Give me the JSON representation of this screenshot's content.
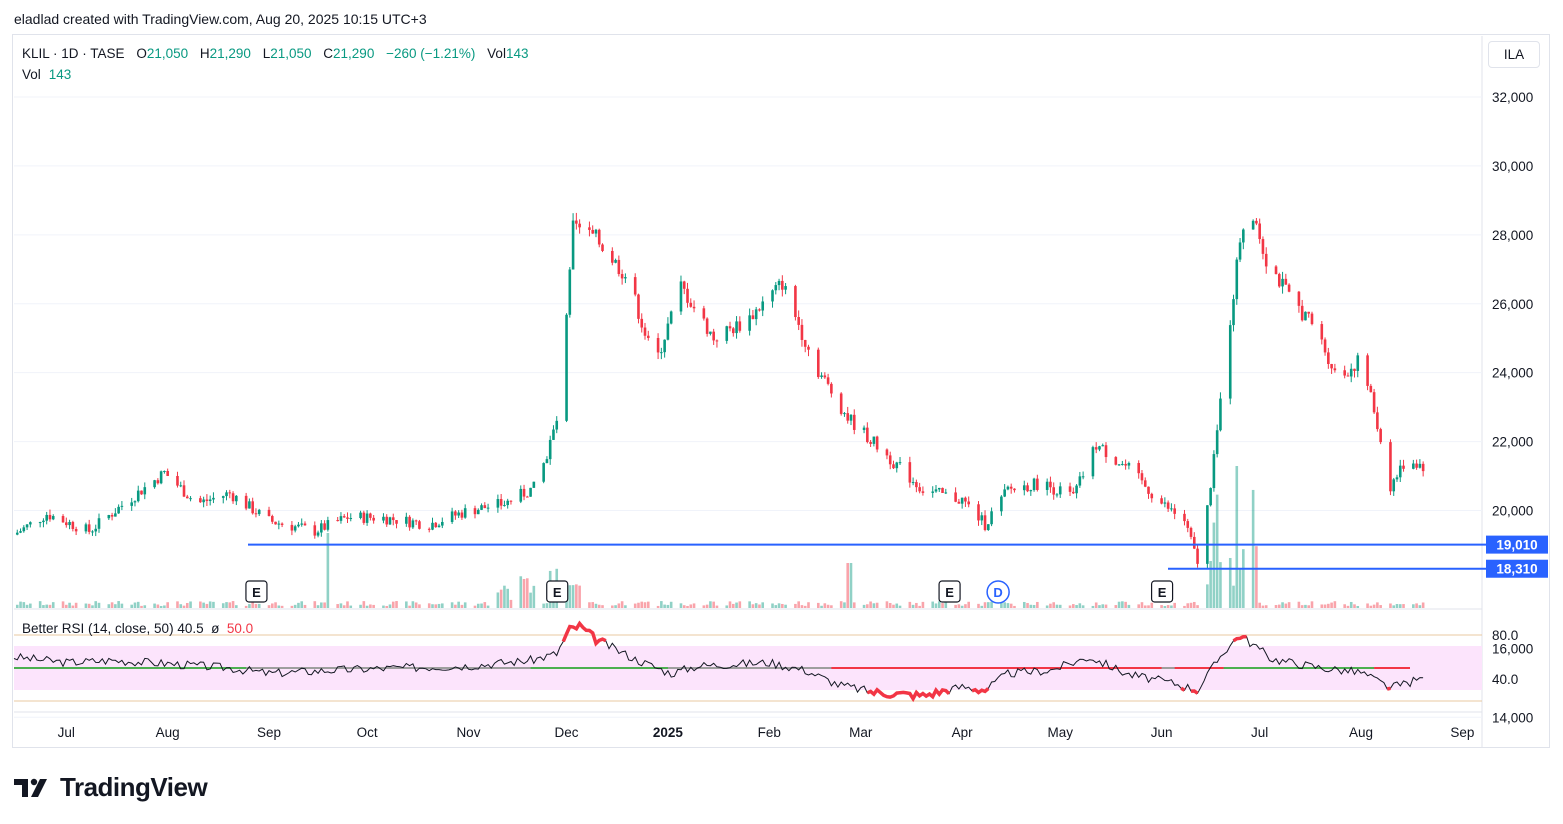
{
  "header": {
    "text": "eladlad created with TradingView.com, Aug 20, 2025 10:15 UTC+3"
  },
  "legend": {
    "symbol": "KLIL · 1D · TASE",
    "open_label": "O",
    "open": "21,050",
    "high_label": "H",
    "high": "21,290",
    "low_label": "L",
    "low": "21,050",
    "close_label": "C",
    "close": "21,290",
    "change": "−260 (−1.21%)",
    "vol_label": "Vol",
    "vol": "143"
  },
  "volume_legend": {
    "label": "Vol",
    "value": "143"
  },
  "rsi_legend": {
    "label": "Better RSI (14, close, 50)",
    "value": "40.5",
    "sep": "ø",
    "mid": "50.0"
  },
  "currency": "ILA",
  "brand": {
    "name": "TradingView"
  },
  "colors": {
    "up": "#089981",
    "down": "#f23645",
    "line": "#2962ff",
    "rsi_band": "#fce4fc"
  },
  "chart_data": [
    {
      "type": "candlestick",
      "symbol": "KLIL",
      "interval": "1D",
      "exchange": "TASE",
      "currency": "ILA",
      "ylim": [
        12000,
        33000
      ],
      "y_ticks": [
        "32,000",
        "30,000",
        "28,000",
        "26,000",
        "24,000",
        "22,000",
        "20,000",
        "16,000",
        "14,000"
      ],
      "x_ticks": [
        "Jul",
        "Aug",
        "Sep",
        "Oct",
        "Nov",
        "Dec",
        "2025",
        "Feb",
        "Mar",
        "Apr",
        "May",
        "Jun",
        "Jul",
        "Aug",
        "Sep"
      ],
      "approx_close_path": [
        [
          "2024-06-15",
          19300
        ],
        [
          "2024-06-25",
          19900
        ],
        [
          "2024-07-08",
          19400
        ],
        [
          "2024-07-20",
          20300
        ],
        [
          "2024-07-31",
          21100
        ],
        [
          "2024-08-10",
          20200
        ],
        [
          "2024-08-20",
          20500
        ],
        [
          "2024-09-01",
          19700
        ],
        [
          "2024-09-15",
          19400
        ],
        [
          "2024-09-25",
          19800
        ],
        [
          "2024-10-05",
          19800
        ],
        [
          "2024-10-20",
          19600
        ],
        [
          "2024-11-01",
          20000
        ],
        [
          "2024-11-12",
          20200
        ],
        [
          "2024-11-22",
          20700
        ],
        [
          "2024-11-28",
          22600
        ],
        [
          "2024-12-01",
          25500
        ],
        [
          "2024-12-03",
          28200
        ],
        [
          "2024-12-10",
          27900
        ],
        [
          "2024-12-20",
          26700
        ],
        [
          "2024-12-28",
          24200
        ],
        [
          "2025-01-05",
          26500
        ],
        [
          "2025-01-15",
          25000
        ],
        [
          "2025-01-25",
          25500
        ],
        [
          "2025-02-05",
          26600
        ],
        [
          "2025-02-15",
          24200
        ],
        [
          "2025-02-25",
          22700
        ],
        [
          "2025-03-10",
          21500
        ],
        [
          "2025-03-20",
          20600
        ],
        [
          "2025-04-01",
          20300
        ],
        [
          "2025-04-08",
          19600
        ],
        [
          "2025-04-15",
          20600
        ],
        [
          "2025-04-25",
          20800
        ],
        [
          "2025-05-05",
          20400
        ],
        [
          "2025-05-12",
          21900
        ],
        [
          "2025-05-22",
          21200
        ],
        [
          "2025-06-01",
          20200
        ],
        [
          "2025-06-08",
          19700
        ],
        [
          "2025-06-12",
          18500
        ],
        [
          "2025-06-16",
          20600
        ],
        [
          "2025-06-20",
          24000
        ],
        [
          "2025-06-25",
          27900
        ],
        [
          "2025-06-28",
          29000
        ],
        [
          "2025-07-03",
          27300
        ],
        [
          "2025-07-10",
          26200
        ],
        [
          "2025-07-18",
          25300
        ],
        [
          "2025-07-25",
          23800
        ],
        [
          "2025-08-01",
          24400
        ],
        [
          "2025-08-05",
          22900
        ],
        [
          "2025-08-10",
          20700
        ],
        [
          "2025-08-15",
          21500
        ],
        [
          "2025-08-20",
          21290
        ]
      ],
      "horizontal_lines": [
        {
          "value": 19010,
          "label": "19,010",
          "color": "#2962ff"
        },
        {
          "value": 18310,
          "label": "18,310",
          "color": "#2962ff"
        }
      ],
      "events": [
        "E",
        "E",
        "E",
        "D",
        "E"
      ]
    },
    {
      "type": "bar",
      "name": "Vol",
      "note": "volume histogram in lower part of main pane, spikes around Sep 2024 and late Jun 2025",
      "last_value": 143
    },
    {
      "type": "line",
      "name": "Better RSI (14, close, 50)",
      "ylim": [
        15,
        90
      ],
      "y_ticks": [
        "80.0",
        "40.0"
      ],
      "last_value": 40.5,
      "midline": 50.0,
      "approx_values": [
        [
          "2024-06-15",
          60
        ],
        [
          "2024-07-01",
          55
        ],
        [
          "2024-07-15",
          57
        ],
        [
          "2024-08-01",
          54
        ],
        [
          "2024-08-20",
          50
        ],
        [
          "2024-09-01",
          45
        ],
        [
          "2024-09-20",
          48
        ],
        [
          "2024-10-10",
          50
        ],
        [
          "2024-11-01",
          52
        ],
        [
          "2024-11-20",
          57
        ],
        [
          "2024-11-28",
          63
        ],
        [
          "2024-12-02",
          85
        ],
        [
          "2024-12-05",
          88
        ],
        [
          "2024-12-10",
          76
        ],
        [
          "2024-12-22",
          58
        ],
        [
          "2025-01-02",
          45
        ],
        [
          "2025-01-10",
          52
        ],
        [
          "2025-02-01",
          55
        ],
        [
          "2025-02-12",
          48
        ],
        [
          "2025-02-22",
          35
        ],
        [
          "2025-03-05",
          28
        ],
        [
          "2025-03-20",
          25
        ],
        [
          "2025-04-01",
          33
        ],
        [
          "2025-04-08",
          30
        ],
        [
          "2025-04-15",
          45
        ],
        [
          "2025-04-28",
          48
        ],
        [
          "2025-05-10",
          60
        ],
        [
          "2025-05-22",
          44
        ],
        [
          "2025-06-05",
          36
        ],
        [
          "2025-06-12",
          30
        ],
        [
          "2025-06-20",
          65
        ],
        [
          "2025-06-25",
          80
        ],
        [
          "2025-07-05",
          58
        ],
        [
          "2025-07-20",
          50
        ],
        [
          "2025-08-01",
          46
        ],
        [
          "2025-08-10",
          32
        ],
        [
          "2025-08-20",
          40.5
        ]
      ]
    }
  ]
}
